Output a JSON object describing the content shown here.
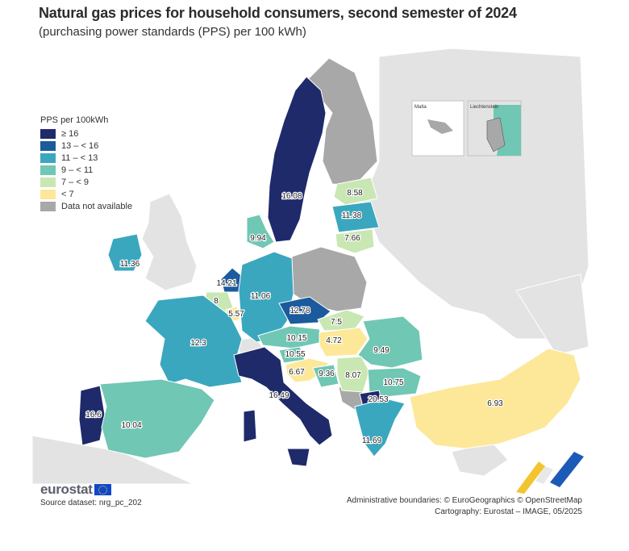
{
  "title": "Natural gas prices for household consumers, second semester of 2024",
  "subtitle": "(purchasing power standards (PPS) per 100 kWh)",
  "legend": {
    "title": "PPS per 100kWh",
    "items": [
      {
        "label": "≥ 16",
        "color": "#1f2a6b"
      },
      {
        "label": "13 – < 16",
        "color": "#1c5a9e"
      },
      {
        "label": "11 – < 13",
        "color": "#3aa7bf"
      },
      {
        "label": "9 – < 11",
        "color": "#6fc7b4"
      },
      {
        "label": "7 – < 9",
        "color": "#c9e7b2"
      },
      {
        "label": "< 7",
        "color": "#fde89a"
      },
      {
        "label": "Data not available",
        "color": "#a8a8a8"
      }
    ]
  },
  "insets": {
    "malta": "Malta",
    "liechtenstein": "Liechtenstein"
  },
  "values": [
    {
      "id": "sweden",
      "label": "16.08"
    },
    {
      "id": "latvia",
      "label": "8.58"
    },
    {
      "id": "estonia-lt",
      "label": "11.38"
    },
    {
      "id": "lithuania",
      "label": "7.66"
    },
    {
      "id": "denmark",
      "label": "9.94"
    },
    {
      "id": "ireland",
      "label": "11.36"
    },
    {
      "id": "netherlands",
      "label": "14.21"
    },
    {
      "id": "belgium",
      "label": "8"
    },
    {
      "id": "luxembourg",
      "label": "5.57"
    },
    {
      "id": "germany",
      "label": "11.06"
    },
    {
      "id": "czechia",
      "label": "12.78"
    },
    {
      "id": "france",
      "label": "12.3"
    },
    {
      "id": "slovakia",
      "label": "7.5"
    },
    {
      "id": "austria",
      "label": "10.15"
    },
    {
      "id": "hungary",
      "label": "4.72"
    },
    {
      "id": "romania",
      "label": "9.49"
    },
    {
      "id": "slovenia",
      "label": "10.55"
    },
    {
      "id": "croatia",
      "label": "6.67"
    },
    {
      "id": "bosnia",
      "label": "9.36"
    },
    {
      "id": "serbia",
      "label": "8.07"
    },
    {
      "id": "bulgaria",
      "label": "10.75"
    },
    {
      "id": "italy",
      "label": "16.49"
    },
    {
      "id": "north-macedonia",
      "label": "20.53"
    },
    {
      "id": "portugal",
      "label": "16.6"
    },
    {
      "id": "spain",
      "label": "10.04"
    },
    {
      "id": "greece",
      "label": "11.69"
    },
    {
      "id": "turkey",
      "label": "6.93"
    }
  ],
  "brand": "eurostat",
  "source": "Source dataset: nrg_pc_202",
  "credits": {
    "boundaries": "Administrative boundaries: © EuroGeographics © OpenStreetMap",
    "cartography": "Cartography: Eurostat – IMAGE, 05/2025"
  }
}
